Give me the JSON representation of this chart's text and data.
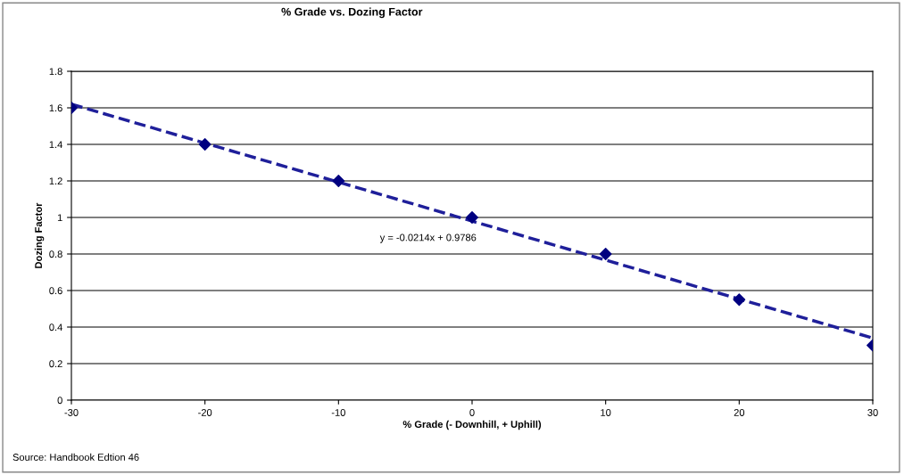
{
  "chart_data": {
    "type": "scatter",
    "title": "% Grade vs. Dozing Factor",
    "xlabel": "% Grade (- Downhill, + Uphill)",
    "ylabel": "Dozing Factor",
    "x": [
      -30,
      -20,
      -10,
      0,
      10,
      20,
      30
    ],
    "series": [
      {
        "color": "#000080",
        "marker": "diamond",
        "values": [
          1.6,
          1.4,
          1.2,
          1.0,
          0.8,
          0.55,
          0.3
        ]
      },
      {
        "type": "line",
        "color": "#1f1f9a",
        "line_style": "dashed",
        "marker": "none",
        "x": [
          -30,
          30
        ],
        "values": [
          1.62,
          0.34
        ]
      }
    ],
    "annotations": [
      "y = -0.0214x + 0.9786",
      "Source: Handbook Edtion 46"
    ],
    "xlim": [
      -30,
      30
    ],
    "xticks": [
      -30,
      -20,
      -10,
      0,
      10,
      20,
      30
    ],
    "ylim": [
      0,
      1.8
    ],
    "yticks": [
      0,
      0.2,
      0.4,
      0.6,
      0.8,
      1,
      1.2,
      1.4,
      1.6,
      1.8
    ],
    "grid": "y",
    "legend": false
  }
}
